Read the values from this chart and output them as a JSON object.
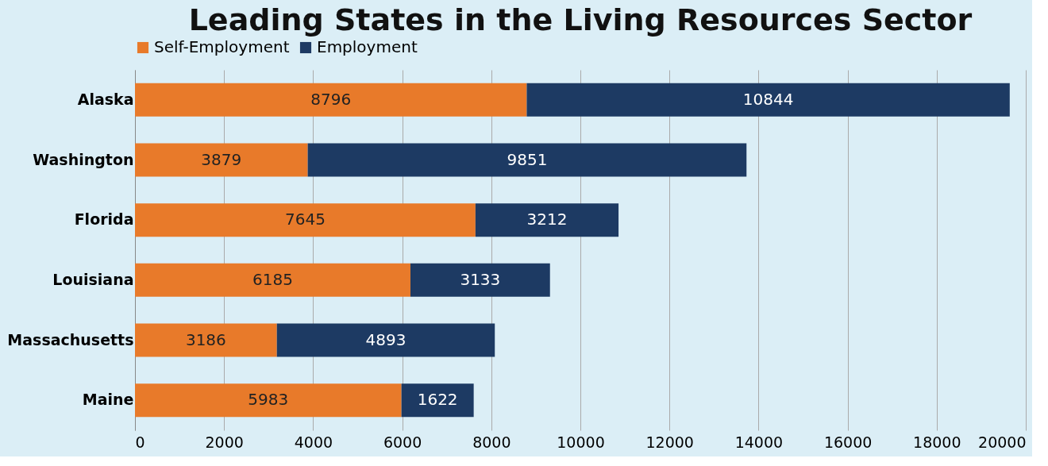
{
  "chart_data": {
    "type": "bar",
    "orientation": "horizontal",
    "stacked": true,
    "title": "Leading States in the Living Resources Sector",
    "categories": [
      "Alaska",
      "Washington",
      "Florida",
      "Louisiana",
      "Massachusetts",
      "Maine"
    ],
    "series": [
      {
        "name": "Self-Employment",
        "color": "#e87a2a",
        "values": [
          8796,
          3879,
          7645,
          6185,
          3186,
          5983
        ]
      },
      {
        "name": "Employment",
        "color": "#1d3a63",
        "values": [
          10844,
          9851,
          3212,
          3133,
          4893,
          1622
        ]
      }
    ],
    "xlim": [
      0,
      20000
    ],
    "xticks": [
      0,
      2000,
      4000,
      6000,
      8000,
      10000,
      12000,
      14000,
      16000,
      18000,
      20000
    ],
    "grid": "x",
    "legend": "top",
    "data_labels": true
  }
}
